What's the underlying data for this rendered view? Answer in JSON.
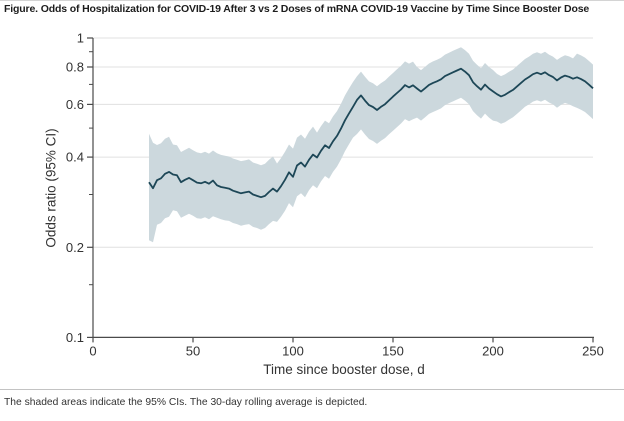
{
  "figure": {
    "title": "Figure.  Odds of Hospitalization for COVID-19 After 3 vs 2 Doses of mRNA COVID-19 Vaccine by Time Since Booster Dose",
    "footnote": "The shaded areas indicate the 95% CIs. The 30-day rolling average is depicted."
  },
  "chart_data": {
    "type": "line",
    "title": "Odds of Hospitalization for COVID-19 After 3 vs 2 Doses of mRNA COVID-19 Vaccine by Time Since Booster Dose",
    "xlabel": "Time since booster dose, d",
    "ylabel": "Odds ratio (95% CI)",
    "legend": "none",
    "grid": "horizontal-major",
    "x_axis": {
      "min": 0,
      "max": 250,
      "ticks": [
        0,
        50,
        100,
        150,
        200,
        250
      ],
      "tick_labels": [
        "0",
        "50",
        "100",
        "150",
        "200",
        "250"
      ]
    },
    "y_axis": {
      "scale": "log",
      "min": 0.1,
      "max": 1,
      "ticks": [
        1,
        0.8,
        0.6,
        0.4,
        0.2,
        0.1
      ],
      "tick_labels": [
        "1",
        "0.8",
        "0.6",
        "0.4",
        "0.2",
        "0.1"
      ],
      "minor_ticks": [
        0.9,
        0.7,
        0.5,
        0.3,
        0.15
      ],
      "gridlines": [
        1,
        0.8,
        0.6,
        0.4,
        0.2
      ]
    },
    "colors": {
      "line": "#1d4757",
      "band": "#ccd8dd",
      "grid": "#e0e0e0",
      "axis": "#4a4a4a"
    },
    "series": [
      {
        "name": "Odds ratio, 30-day rolling average",
        "days": [
          28,
          30,
          32,
          34,
          36,
          38,
          40,
          42,
          44,
          46,
          48,
          50,
          52,
          54,
          56,
          58,
          60,
          62,
          64,
          66,
          68,
          70,
          72,
          74,
          76,
          78,
          80,
          82,
          84,
          86,
          88,
          90,
          92,
          94,
          96,
          98,
          100,
          102,
          104,
          106,
          108,
          110,
          112,
          114,
          116,
          118,
          120,
          122,
          124,
          126,
          128,
          130,
          132,
          134,
          136,
          138,
          140,
          142,
          144,
          146,
          148,
          150,
          152,
          154,
          156,
          158,
          160,
          162,
          164,
          166,
          168,
          170,
          172,
          174,
          176,
          178,
          180,
          182,
          184,
          186,
          188,
          190,
          192,
          194,
          196,
          198,
          200,
          202,
          204,
          206,
          208,
          210,
          212,
          214,
          216,
          218,
          220,
          222,
          224,
          226,
          228,
          230,
          232,
          234,
          236,
          238,
          240,
          242,
          244,
          246,
          248,
          250
        ],
        "values": [
          0.33,
          0.315,
          0.335,
          0.34,
          0.352,
          0.357,
          0.35,
          0.348,
          0.33,
          0.336,
          0.341,
          0.335,
          0.329,
          0.327,
          0.331,
          0.326,
          0.334,
          0.322,
          0.318,
          0.316,
          0.314,
          0.309,
          0.306,
          0.303,
          0.305,
          0.307,
          0.3,
          0.297,
          0.294,
          0.297,
          0.306,
          0.314,
          0.307,
          0.32,
          0.336,
          0.356,
          0.344,
          0.375,
          0.384,
          0.372,
          0.392,
          0.408,
          0.399,
          0.42,
          0.438,
          0.429,
          0.452,
          0.471,
          0.498,
          0.531,
          0.56,
          0.589,
          0.621,
          0.643,
          0.618,
          0.597,
          0.588,
          0.575,
          0.589,
          0.601,
          0.619,
          0.637,
          0.655,
          0.673,
          0.696,
          0.684,
          0.695,
          0.678,
          0.662,
          0.679,
          0.697,
          0.708,
          0.717,
          0.728,
          0.746,
          0.757,
          0.768,
          0.779,
          0.79,
          0.772,
          0.751,
          0.712,
          0.69,
          0.672,
          0.699,
          0.678,
          0.663,
          0.649,
          0.638,
          0.646,
          0.659,
          0.671,
          0.689,
          0.708,
          0.727,
          0.741,
          0.757,
          0.766,
          0.757,
          0.768,
          0.752,
          0.741,
          0.722,
          0.738,
          0.749,
          0.742,
          0.731,
          0.739,
          0.729,
          0.717,
          0.698,
          0.679
        ]
      }
    ],
    "ci_band": {
      "name": "95% CI",
      "upper": [
        0.479,
        0.447,
        0.439,
        0.445,
        0.461,
        0.468,
        0.441,
        0.438,
        0.416,
        0.423,
        0.43,
        0.422,
        0.415,
        0.412,
        0.417,
        0.411,
        0.421,
        0.412,
        0.407,
        0.404,
        0.402,
        0.396,
        0.392,
        0.388,
        0.39,
        0.393,
        0.384,
        0.38,
        0.376,
        0.38,
        0.392,
        0.402,
        0.381,
        0.397,
        0.417,
        0.441,
        0.427,
        0.465,
        0.476,
        0.461,
        0.486,
        0.506,
        0.483,
        0.508,
        0.53,
        0.519,
        0.547,
        0.57,
        0.603,
        0.643,
        0.678,
        0.713,
        0.745,
        0.772,
        0.742,
        0.716,
        0.706,
        0.69,
        0.707,
        0.721,
        0.743,
        0.764,
        0.786,
        0.808,
        0.835,
        0.821,
        0.834,
        0.8,
        0.781,
        0.801,
        0.822,
        0.835,
        0.846,
        0.859,
        0.88,
        0.893,
        0.906,
        0.919,
        0.932,
        0.911,
        0.886,
        0.84,
        0.814,
        0.793,
        0.825,
        0.8,
        0.782,
        0.759,
        0.746,
        0.756,
        0.771,
        0.785,
        0.806,
        0.828,
        0.851,
        0.867,
        0.886,
        0.896,
        0.886,
        0.899,
        0.88,
        0.867,
        0.845,
        0.863,
        0.876,
        0.868,
        0.855,
        0.887,
        0.875,
        0.86,
        0.838,
        0.815
      ],
      "lower": [
        0.211,
        0.208,
        0.238,
        0.241,
        0.25,
        0.253,
        0.266,
        0.264,
        0.251,
        0.255,
        0.259,
        0.255,
        0.25,
        0.249,
        0.252,
        0.248,
        0.254,
        0.251,
        0.248,
        0.246,
        0.245,
        0.241,
        0.239,
        0.236,
        0.238,
        0.239,
        0.234,
        0.232,
        0.229,
        0.232,
        0.239,
        0.245,
        0.243,
        0.253,
        0.265,
        0.281,
        0.272,
        0.296,
        0.303,
        0.294,
        0.31,
        0.322,
        0.315,
        0.332,
        0.346,
        0.339,
        0.357,
        0.372,
        0.393,
        0.419,
        0.442,
        0.465,
        0.478,
        0.495,
        0.476,
        0.46,
        0.453,
        0.443,
        0.454,
        0.463,
        0.477,
        0.49,
        0.504,
        0.518,
        0.536,
        0.527,
        0.535,
        0.542,
        0.53,
        0.543,
        0.558,
        0.566,
        0.574,
        0.582,
        0.597,
        0.606,
        0.614,
        0.623,
        0.632,
        0.618,
        0.601,
        0.57,
        0.552,
        0.538,
        0.559,
        0.542,
        0.53,
        0.526,
        0.517,
        0.523,
        0.534,
        0.544,
        0.558,
        0.573,
        0.589,
        0.6,
        0.613,
        0.62,
        0.613,
        0.622,
        0.609,
        0.6,
        0.585,
        0.598,
        0.607,
        0.601,
        0.592,
        0.584,
        0.576,
        0.566,
        0.551,
        0.536
      ]
    }
  }
}
